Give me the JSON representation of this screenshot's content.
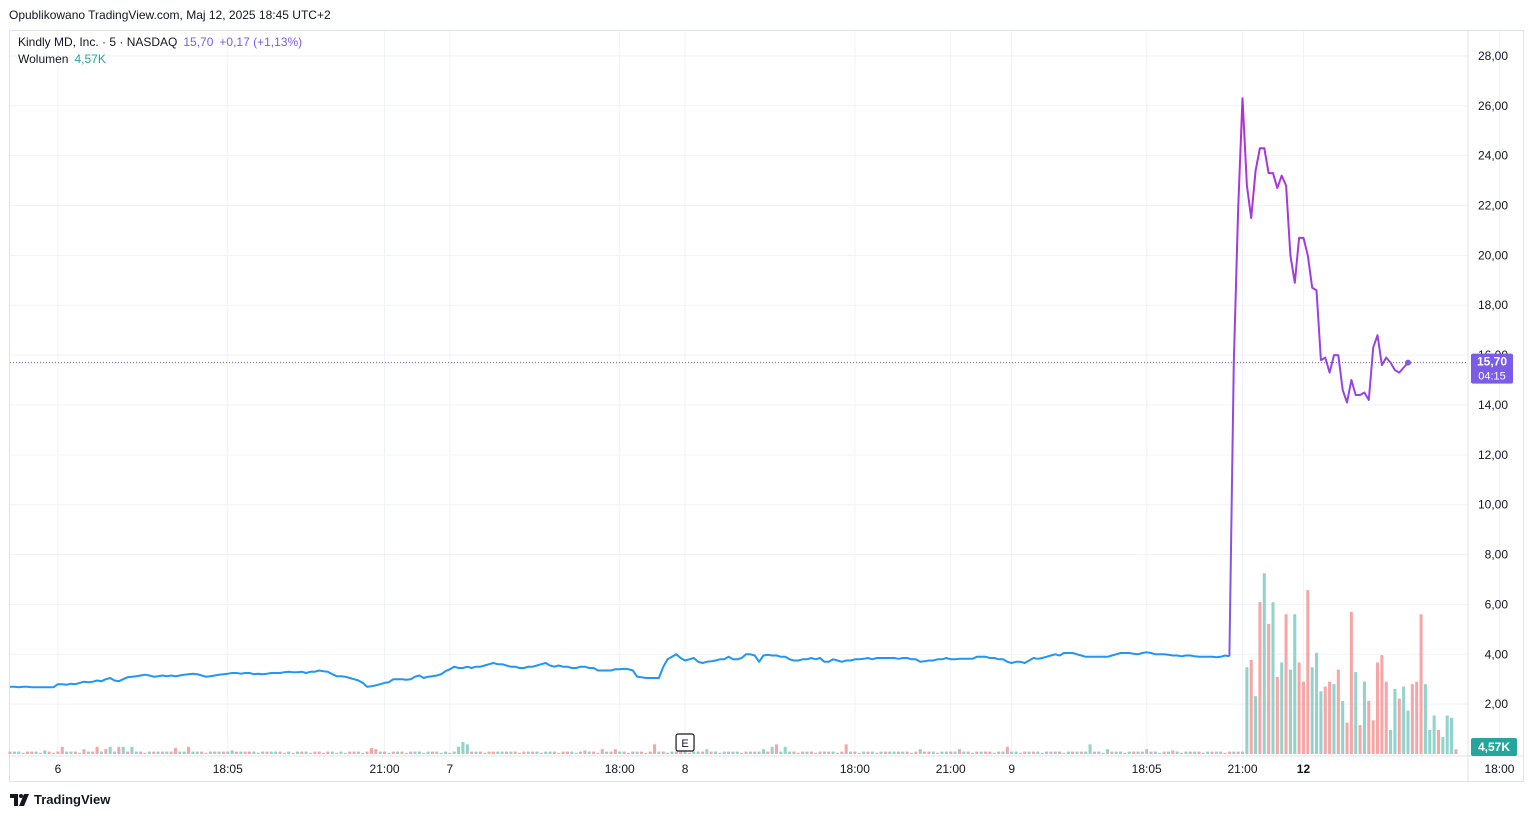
{
  "publisher_line": "Opublikowano TradingView.com, Maj 12, 2025 18:45 UTC+2",
  "legend": {
    "symbol": "Kindly MD, Inc. · 5 · NASDAQ",
    "price": "15,70",
    "change": "+0,17 (+1,13%)",
    "volume_label": "Wolumen",
    "volume_value": "4,57K"
  },
  "last_price_badge": {
    "price": "15,70",
    "countdown": "04:15"
  },
  "volume_badge": "4,57K",
  "earnings_marker": "E",
  "footer": {
    "brand": "TradingView"
  },
  "colors": {
    "pre_line": "#2196f3",
    "post_line_top": "#b22fd6",
    "post_line_bottom": "#7b5ce6",
    "volume_up": "#92d3cc",
    "volume_down": "#f5a6a6",
    "badge_price": "#7b5ce6",
    "badge_volume": "#26a69a"
  },
  "chart_data": {
    "type": "line",
    "ylim": [
      0,
      29
    ],
    "yticks": [
      "2,00",
      "4,00",
      "6,00",
      "8,00",
      "10,00",
      "12,00",
      "14,00",
      "16,00",
      "18,00",
      "20,00",
      "22,00",
      "24,00",
      "26,00",
      "28,00"
    ],
    "ytick_values": [
      2,
      4,
      6,
      8,
      10,
      12,
      14,
      16,
      18,
      20,
      22,
      24,
      26,
      28
    ],
    "xticks": [
      {
        "label": "6",
        "i": 11,
        "bold": false
      },
      {
        "label": "18:05",
        "i": 50,
        "bold": false
      },
      {
        "label": "21:00",
        "i": 86,
        "bold": false
      },
      {
        "label": "7",
        "i": 101,
        "bold": false
      },
      {
        "label": "18:00",
        "i": 140,
        "bold": false
      },
      {
        "label": "8",
        "i": 155,
        "bold": false
      },
      {
        "label": "18:00",
        "i": 194,
        "bold": false
      },
      {
        "label": "21:00",
        "i": 216,
        "bold": false
      },
      {
        "label": "9",
        "i": 230,
        "bold": false
      },
      {
        "label": "18:05",
        "i": 261,
        "bold": false
      },
      {
        "label": "21:00",
        "i": 283,
        "bold": false
      },
      {
        "label": "12",
        "i": 297,
        "bold": true
      },
      {
        "label": "18:00",
        "i": 342,
        "bold": false
      }
    ],
    "series": [
      {
        "values": [
          2.7,
          2.7,
          2.68,
          2.7,
          2.7,
          2.68,
          2.68,
          2.68,
          2.68,
          2.68,
          2.68,
          2.8,
          2.8,
          2.78,
          2.82,
          2.8,
          2.85,
          2.9,
          2.88,
          2.9,
          2.95,
          2.92,
          3.0,
          3.05,
          2.95,
          2.92,
          3.0,
          3.08,
          3.1,
          3.12,
          3.15,
          3.18,
          3.15,
          3.1,
          3.12,
          3.15,
          3.12,
          3.15,
          3.12,
          3.15,
          3.18,
          3.2,
          3.22,
          3.2,
          3.15,
          3.1,
          3.12,
          3.15,
          3.18,
          3.2,
          3.22,
          3.25,
          3.25,
          3.22,
          3.25,
          3.25,
          3.2,
          3.22,
          3.2,
          3.22,
          3.25,
          3.25,
          3.25,
          3.28,
          3.3,
          3.28,
          3.28,
          3.3,
          3.25,
          3.3,
          3.3,
          3.35,
          3.32,
          3.3,
          3.2,
          3.12,
          3.12,
          3.1,
          3.05,
          3.0,
          2.95,
          2.85,
          2.7,
          2.72,
          2.75,
          2.8,
          2.85,
          2.88,
          3.0,
          3.0,
          3.0,
          2.98,
          3.0,
          3.1,
          3.15,
          3.05,
          3.1,
          3.12,
          3.15,
          3.2,
          3.32,
          3.4,
          3.5,
          3.45,
          3.45,
          3.5,
          3.45,
          3.5,
          3.5,
          3.55,
          3.6,
          3.65,
          3.6,
          3.6,
          3.55,
          3.5,
          3.5,
          3.45,
          3.45,
          3.5,
          3.5,
          3.55,
          3.6,
          3.65,
          3.55,
          3.5,
          3.55,
          3.5,
          3.5,
          3.45,
          3.45,
          3.5,
          3.5,
          3.45,
          3.45,
          3.35,
          3.35,
          3.35,
          3.35,
          3.4,
          3.4,
          3.42,
          3.4,
          3.35,
          3.1,
          3.08,
          3.05,
          3.05,
          3.05,
          3.05,
          3.5,
          3.8,
          3.9,
          4.0,
          3.85,
          3.75,
          3.8,
          3.85,
          3.7,
          3.65,
          3.7,
          3.72,
          3.75,
          3.8,
          3.8,
          3.9,
          3.8,
          3.8,
          3.85,
          4.0,
          4.0,
          3.95,
          3.7,
          3.95,
          3.98,
          3.95,
          3.95,
          3.9,
          3.9,
          3.8,
          3.75,
          3.75,
          3.8,
          3.8,
          3.85,
          3.8,
          3.85,
          3.7,
          3.7,
          3.8,
          3.75,
          3.7,
          3.75,
          3.75,
          3.8,
          3.8,
          3.82,
          3.85,
          3.8,
          3.85,
          3.85,
          3.85,
          3.85,
          3.85,
          3.82,
          3.85,
          3.85,
          3.8,
          3.8,
          3.7,
          3.72,
          3.75,
          3.75,
          3.8,
          3.8,
          3.85,
          3.8,
          3.8,
          3.82,
          3.82,
          3.82,
          3.82,
          3.9,
          3.9,
          3.9,
          3.85,
          3.85,
          3.8,
          3.8,
          3.7,
          3.65,
          3.7,
          3.7,
          3.65,
          3.75,
          3.85,
          3.82,
          3.85,
          3.9,
          3.95,
          4.0,
          3.95,
          4.05,
          4.05,
          4.05,
          4.0,
          3.95,
          3.9,
          3.9,
          3.9,
          3.9,
          3.9,
          3.9,
          3.95,
          4.0,
          4.05,
          4.05,
          4.05,
          4.02,
          4.0,
          4.05,
          4.08,
          4.05,
          4.0,
          4.0,
          4.0,
          3.98,
          3.95,
          3.95,
          3.92,
          3.95,
          3.95,
          3.92,
          3.9,
          3.9,
          3.9,
          3.9,
          3.88,
          3.9,
          3.95,
          3.92
        ]
      },
      {
        "values": [
          3.92,
          15.7,
          21.8,
          26.3,
          22.8,
          21.5,
          23.4,
          24.3,
          24.3,
          23.3,
          23.3,
          22.7,
          23.2,
          22.8,
          20.0,
          18.9,
          20.7,
          20.7,
          20.0,
          18.7,
          18.6,
          15.8,
          15.9,
          15.3,
          16.0,
          16.0,
          14.6,
          14.1,
          15.0,
          14.4,
          14.4,
          14.5,
          14.2,
          16.3,
          16.8,
          15.6,
          15.9,
          15.7,
          15.4,
          15.3,
          15.5,
          15.7
        ]
      }
    ],
    "volume": {
      "values": [
        0.1,
        0.1,
        0.1,
        0.05,
        0.1,
        0.1,
        0.1,
        0.05,
        0.15,
        0.1,
        0.05,
        0.1,
        0.3,
        0.1,
        0.1,
        0.1,
        0.05,
        0.2,
        0.1,
        0.1,
        0.3,
        0.1,
        0.2,
        0.3,
        0.1,
        0.3,
        0.3,
        0.1,
        0.3,
        0.1,
        0.1,
        0.05,
        0.1,
        0.1,
        0.1,
        0.1,
        0.1,
        0.1,
        0.25,
        0.1,
        0.1,
        0.3,
        0.1,
        0.1,
        0.1,
        0.05,
        0.1,
        0.1,
        0.1,
        0.1,
        0.1,
        0.15,
        0.1,
        0.1,
        0.1,
        0.1,
        0.1,
        0.05,
        0.1,
        0.1,
        0.1,
        0.1,
        0.1,
        0.05,
        0.1,
        0.05,
        0.1,
        0.1,
        0.1,
        0.05,
        0.1,
        0.1,
        0.05,
        0.1,
        0.1,
        0.05,
        0.1,
        0.05,
        0.1,
        0.1,
        0.1,
        0.05,
        0.1,
        0.25,
        0.2,
        0.1,
        0.1,
        0.05,
        0.1,
        0.1,
        0.1,
        0.05,
        0.1,
        0.1,
        0.1,
        0.05,
        0.1,
        0.1,
        0.1,
        0.05,
        0.1,
        0.05,
        0.1,
        0.3,
        0.5,
        0.4,
        0.1,
        0.1,
        0.1,
        0.05,
        0.1,
        0.1,
        0.1,
        0.1,
        0.1,
        0.1,
        0.1,
        0.05,
        0.1,
        0.1,
        0.1,
        0.1,
        0.05,
        0.1,
        0.1,
        0.1,
        0.05,
        0.1,
        0.1,
        0.1,
        0.05,
        0.1,
        0.15,
        0.1,
        0.1,
        0.05,
        0.2,
        0.1,
        0.1,
        0.2,
        0.1,
        0.1,
        0.05,
        0.1,
        0.1,
        0.1,
        0.05,
        0.1,
        0.4,
        0.1,
        0.1,
        0.05,
        0.1,
        0.1,
        0.1,
        0.1,
        0.05,
        0.1,
        0.1,
        0.1,
        0.2,
        0.1,
        0.1,
        0.05,
        0.1,
        0.1,
        0.1,
        0.1,
        0.05,
        0.1,
        0.1,
        0.1,
        0.1,
        0.2,
        0.1,
        0.3,
        0.4,
        0.1,
        0.3,
        0.1,
        0.1,
        0.05,
        0.1,
        0.1,
        0.1,
        0.05,
        0.1,
        0.1,
        0.1,
        0.1,
        0.05,
        0.1,
        0.4,
        0.1,
        0.1,
        0.05,
        0.1,
        0.1,
        0.1,
        0.05,
        0.1,
        0.1,
        0.1,
        0.1,
        0.1,
        0.1,
        0.1,
        0.05,
        0.1,
        0.2,
        0.1,
        0.1,
        0.1,
        0.05,
        0.1,
        0.1,
        0.1,
        0.1,
        0.2,
        0.1,
        0.1,
        0.05,
        0.1,
        0.1,
        0.1,
        0.1,
        0.05,
        0.1,
        0.1,
        0.3,
        0.1,
        0.1,
        0.05,
        0.1,
        0.1,
        0.1,
        0.1,
        0.05,
        0.1,
        0.1,
        0.1,
        0.1,
        0.05,
        0.1,
        0.1,
        0.1,
        0.1,
        0.1,
        0.4,
        0.1,
        0.1,
        0.05,
        0.2,
        0.1,
        0.1,
        0.1,
        0.05,
        0.1,
        0.1,
        0.1,
        0.1,
        0.2,
        0.1,
        0.1,
        0.05,
        0.1,
        0.1,
        0.15,
        0.1,
        0.05,
        0.1,
        0.1,
        0.1,
        0.1,
        0.05,
        0.1,
        0.1,
        0.1,
        0.1,
        0.05,
        0.1,
        0.1,
        0.1,
        0.1,
        3.6,
        3.9,
        2.4,
        6.3,
        7.5,
        5.4,
        6.3,
        3.2,
        3.8,
        5.8,
        3.5,
        5.8,
        3.8,
        3.0,
        6.8,
        3.6,
        4.2,
        2.6,
        2.8,
        3.0,
        2.9,
        3.5,
        2.2,
        1.3,
        5.9,
        3.4,
        1.2,
        3.0,
        2.2,
        1.4,
        3.8,
        4.1,
        3.0,
        1.0,
        2.7,
        2.3,
        2.8,
        1.8,
        2.9,
        3.0,
        5.8,
        2.9,
        1.0,
        1.6,
        1.0,
        0.7,
        1.6,
        1.5,
        0.2
      ],
      "up": [
        0,
        1,
        1,
        1,
        0,
        0,
        1,
        0,
        1,
        0,
        1,
        0,
        0,
        1,
        1,
        0,
        1,
        0,
        1,
        0,
        0,
        1,
        0,
        1,
        1,
        0,
        1,
        0,
        1,
        1,
        0,
        0,
        1,
        0,
        1,
        0,
        1,
        0,
        0,
        1,
        1,
        0,
        1,
        1,
        0,
        0,
        1,
        0,
        1,
        0,
        1,
        1,
        0,
        1,
        0,
        0,
        1,
        0,
        1,
        0,
        1,
        1,
        0,
        0,
        1,
        0,
        1,
        0,
        1,
        1,
        0,
        0,
        1,
        0,
        1,
        0,
        1,
        1,
        0,
        0,
        1,
        0,
        0,
        0,
        0,
        1,
        0,
        1,
        0,
        1,
        0,
        1,
        0,
        1,
        1,
        0,
        1,
        0,
        1,
        0,
        1,
        0,
        1,
        1,
        1,
        1,
        0,
        1,
        0,
        1,
        0,
        0,
        1,
        1,
        0,
        1,
        0,
        1,
        0,
        1,
        0,
        1,
        0,
        1,
        1,
        0,
        1,
        0,
        0,
        1,
        0,
        1,
        0,
        1,
        0,
        0,
        0,
        1,
        0,
        0,
        1,
        0,
        1,
        0,
        1,
        0,
        1,
        0,
        0,
        1,
        0,
        0,
        1,
        0,
        0,
        1,
        0,
        1,
        1,
        0,
        1,
        0,
        1,
        0,
        1,
        0,
        1,
        1,
        0,
        0,
        1,
        0,
        1,
        1,
        0,
        1,
        0,
        1,
        1,
        1,
        0,
        0,
        0,
        1,
        0,
        1,
        0,
        1,
        0,
        1,
        1,
        0,
        0,
        1,
        0,
        0,
        1,
        0,
        1,
        0,
        1,
        0,
        1,
        1,
        0,
        1,
        0,
        1,
        0,
        1,
        0,
        0,
        1,
        0,
        1,
        1,
        0,
        1,
        0,
        1,
        0,
        1,
        0,
        1,
        0,
        0,
        1,
        0,
        1,
        0,
        1,
        1,
        0,
        0,
        1,
        0,
        1,
        0,
        1,
        0,
        1,
        0,
        1,
        1,
        0,
        1,
        0,
        1,
        1,
        0,
        1,
        0,
        1,
        0,
        1,
        1,
        0,
        1,
        0,
        1,
        0,
        1,
        0,
        1,
        1,
        0,
        1,
        0,
        1,
        0,
        1,
        0,
        1,
        0,
        1,
        1,
        0,
        1,
        0,
        1,
        0,
        1,
        0,
        1,
        1,
        0,
        1,
        0,
        1,
        0,
        1,
        0,
        1,
        0,
        1,
        1,
        0,
        0,
        0,
        1,
        1,
        1,
        0,
        0,
        1,
        0,
        1,
        0,
        0,
        1,
        0,
        1,
        0,
        0,
        0,
        0,
        0,
        1,
        1,
        0,
        1,
        1,
        0,
        0,
        0,
        1,
        1,
        1,
        0,
        1,
        1,
        1,
        0,
        1,
        0,
        1,
        0,
        0,
        1,
        1,
        0,
        0,
        1
      ],
      "ylim": [
        0,
        30
      ]
    },
    "last_price": 15.7
  }
}
